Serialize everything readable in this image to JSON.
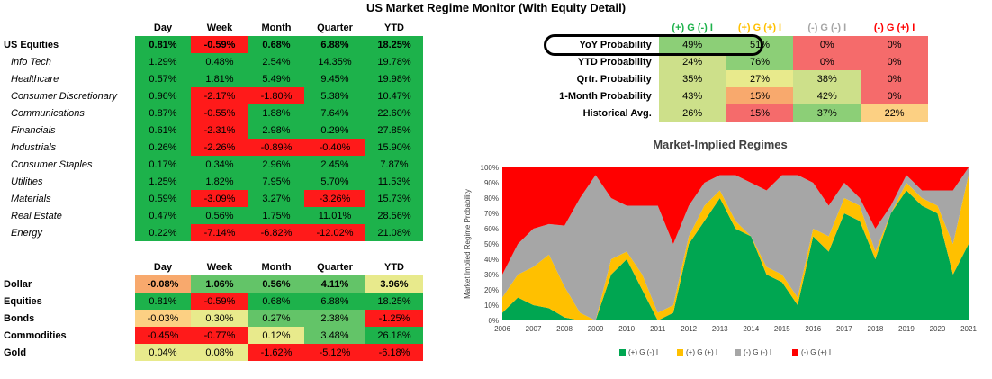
{
  "title": "US Market Regime Monitor (With Equity Detail)",
  "colors": {
    "green": "#1db24b",
    "light_green": "#63c468",
    "mid_green": "#8ccf77",
    "lime": "#cde08a",
    "yellow": "#e8ea8c",
    "orange": "#f8a96d",
    "light_orange": "#fcd083",
    "red": "#ff1a1a",
    "light_red": "#f56b6b",
    "regime_green": "#00a651",
    "regime_yellow": "#ffc000",
    "regime_gray": "#a6a6a6",
    "regime_red": "#ff0000"
  },
  "equity_table": {
    "headers": [
      "Day",
      "Week",
      "Month",
      "Quarter",
      "YTD"
    ],
    "rows": [
      {
        "label": "US Equities",
        "sub": false,
        "bold": true,
        "values": [
          "0.81%",
          "-0.59%",
          "0.68%",
          "6.88%",
          "18.25%"
        ],
        "fills": [
          "green",
          "red",
          "green",
          "green",
          "green"
        ]
      },
      {
        "label": "Info Tech",
        "sub": true,
        "values": [
          "1.29%",
          "0.48%",
          "2.54%",
          "14.35%",
          "19.78%"
        ],
        "fills": [
          "green",
          "green",
          "green",
          "green",
          "green"
        ]
      },
      {
        "label": "Healthcare",
        "sub": true,
        "values": [
          "0.57%",
          "1.81%",
          "5.49%",
          "9.45%",
          "19.98%"
        ],
        "fills": [
          "green",
          "green",
          "green",
          "green",
          "green"
        ]
      },
      {
        "label": "Consumer Discretionary",
        "sub": true,
        "values": [
          "0.96%",
          "-2.17%",
          "-1.80%",
          "5.38%",
          "10.47%"
        ],
        "fills": [
          "green",
          "red",
          "red",
          "green",
          "green"
        ]
      },
      {
        "label": "Communications",
        "sub": true,
        "values": [
          "0.87%",
          "-0.55%",
          "1.88%",
          "7.64%",
          "22.60%"
        ],
        "fills": [
          "green",
          "red",
          "green",
          "green",
          "green"
        ]
      },
      {
        "label": "Financials",
        "sub": true,
        "values": [
          "0.61%",
          "-2.31%",
          "2.98%",
          "0.29%",
          "27.85%"
        ],
        "fills": [
          "green",
          "red",
          "green",
          "green",
          "green"
        ]
      },
      {
        "label": "Industrials",
        "sub": true,
        "values": [
          "0.26%",
          "-2.26%",
          "-0.89%",
          "-0.40%",
          "15.90%"
        ],
        "fills": [
          "green",
          "red",
          "red",
          "red",
          "green"
        ]
      },
      {
        "label": "Consumer Staples",
        "sub": true,
        "values": [
          "0.17%",
          "0.34%",
          "2.96%",
          "2.45%",
          "7.87%"
        ],
        "fills": [
          "green",
          "green",
          "green",
          "green",
          "green"
        ]
      },
      {
        "label": "Utilities",
        "sub": true,
        "values": [
          "1.25%",
          "1.82%",
          "7.95%",
          "5.70%",
          "11.53%"
        ],
        "fills": [
          "green",
          "green",
          "green",
          "green",
          "green"
        ]
      },
      {
        "label": "Materials",
        "sub": true,
        "values": [
          "0.59%",
          "-3.09%",
          "3.27%",
          "-3.26%",
          "15.73%"
        ],
        "fills": [
          "green",
          "red",
          "green",
          "red",
          "green"
        ]
      },
      {
        "label": "Real Estate",
        "sub": true,
        "values": [
          "0.47%",
          "0.56%",
          "1.75%",
          "11.01%",
          "28.56%"
        ],
        "fills": [
          "green",
          "green",
          "green",
          "green",
          "green"
        ]
      },
      {
        "label": "Energy",
        "sub": true,
        "values": [
          "0.22%",
          "-7.14%",
          "-6.82%",
          "-12.02%",
          "21.08%"
        ],
        "fills": [
          "green",
          "red",
          "red",
          "red",
          "green"
        ]
      }
    ]
  },
  "asset_table": {
    "headers": [
      "Day",
      "Week",
      "Month",
      "Quarter",
      "YTD"
    ],
    "rows": [
      {
        "label": "Dollar",
        "bold": true,
        "values": [
          "-0.08%",
          "1.06%",
          "0.56%",
          "4.11%",
          "3.96%"
        ],
        "fills": [
          "orange",
          "light_green",
          "light_green",
          "light_green",
          "yellow"
        ]
      },
      {
        "label": "Equities",
        "bold": false,
        "values": [
          "0.81%",
          "-0.59%",
          "0.68%",
          "6.88%",
          "18.25%"
        ],
        "fills": [
          "green",
          "red",
          "green",
          "green",
          "green"
        ]
      },
      {
        "label": "Bonds",
        "bold": false,
        "values": [
          "-0.03%",
          "0.30%",
          "0.27%",
          "2.38%",
          "-1.25%"
        ],
        "fills": [
          "light_orange",
          "yellow",
          "light_green",
          "light_green",
          "red"
        ]
      },
      {
        "label": "Commodities",
        "bold": false,
        "values": [
          "-0.45%",
          "-0.77%",
          "0.12%",
          "3.48%",
          "26.18%"
        ],
        "fills": [
          "red",
          "red",
          "yellow",
          "light_green",
          "green"
        ]
      },
      {
        "label": "Gold",
        "bold": false,
        "values": [
          "0.04%",
          "0.08%",
          "-1.62%",
          "-5.12%",
          "-6.18%"
        ],
        "fills": [
          "yellow",
          "yellow",
          "red",
          "red",
          "red"
        ]
      }
    ]
  },
  "regime_table": {
    "headers": [
      {
        "text": "(+) G (-) I",
        "color": "#1db24b"
      },
      {
        "text": "(+) G (+) I",
        "color": "#ffc000"
      },
      {
        "text": "(-) G (-) I",
        "color": "#a6a6a6"
      },
      {
        "text": "(-) G (+) I",
        "color": "#ff0000"
      }
    ],
    "rows": [
      {
        "label": "YoY Probability",
        "values": [
          "49%",
          "51%",
          "0%",
          "0%"
        ],
        "fills": [
          "mid_green",
          "mid_green",
          "light_red",
          "light_red"
        ]
      },
      {
        "label": "YTD Probability",
        "values": [
          "24%",
          "76%",
          "0%",
          "0%"
        ],
        "fills": [
          "lime",
          "mid_green",
          "light_red",
          "light_red"
        ]
      },
      {
        "label": "Qrtr. Probability",
        "values": [
          "35%",
          "27%",
          "38%",
          "0%"
        ],
        "fills": [
          "lime",
          "yellow",
          "lime",
          "light_red"
        ]
      },
      {
        "label": "1-Month Probability",
        "values": [
          "43%",
          "15%",
          "42%",
          "0%"
        ],
        "fills": [
          "lime",
          "orange",
          "lime",
          "light_red"
        ]
      },
      {
        "label": "Historical Avg.",
        "values": [
          "26%",
          "15%",
          "37%",
          "22%"
        ],
        "fills": [
          "lime",
          "light_red",
          "mid_green",
          "light_orange"
        ]
      }
    ]
  },
  "chart_data": {
    "type": "area",
    "title": "Market-Implied Regimes",
    "ylabel": "Market Implied Regime Probability",
    "xlabel": "",
    "x_ticks": [
      "2006",
      "2007",
      "2008",
      "2009",
      "2010",
      "2011",
      "2012",
      "2013",
      "2014",
      "2015",
      "2016",
      "2017",
      "2018",
      "2019",
      "2020",
      "2021"
    ],
    "y_ticks": [
      "0%",
      "10%",
      "20%",
      "30%",
      "40%",
      "50%",
      "60%",
      "70%",
      "80%",
      "90%",
      "100%"
    ],
    "xlim": [
      2006,
      2021
    ],
    "ylim": [
      0,
      100
    ],
    "stacked": true,
    "x": [
      2006.0,
      2006.5,
      2007.0,
      2007.5,
      2008.0,
      2008.5,
      2009.0,
      2009.5,
      2010.0,
      2010.5,
      2011.0,
      2011.5,
      2012.0,
      2012.5,
      2013.0,
      2013.5,
      2014.0,
      2014.5,
      2015.0,
      2015.5,
      2016.0,
      2016.5,
      2017.0,
      2017.5,
      2018.0,
      2018.5,
      2019.0,
      2019.5,
      2020.0,
      2020.5,
      2021.0
    ],
    "series": [
      {
        "name": "(+) G (-) I",
        "color": "#00a651",
        "values": [
          5,
          15,
          10,
          8,
          2,
          0,
          0,
          30,
          40,
          20,
          0,
          5,
          50,
          65,
          80,
          60,
          55,
          30,
          25,
          10,
          55,
          45,
          70,
          65,
          40,
          70,
          85,
          75,
          70,
          30,
          50
        ]
      },
      {
        "name": "(+) G (+) I",
        "color": "#ffc000",
        "values": [
          10,
          15,
          25,
          35,
          20,
          5,
          0,
          10,
          5,
          10,
          5,
          5,
          5,
          10,
          5,
          5,
          0,
          5,
          5,
          5,
          5,
          10,
          10,
          10,
          5,
          0,
          5,
          5,
          5,
          20,
          45
        ]
      },
      {
        "name": "(-) G (-) I",
        "color": "#a6a6a6",
        "values": [
          15,
          20,
          25,
          20,
          40,
          75,
          95,
          40,
          30,
          45,
          70,
          40,
          20,
          15,
          10,
          30,
          35,
          50,
          65,
          80,
          30,
          20,
          10,
          5,
          15,
          5,
          5,
          5,
          10,
          35,
          5
        ]
      },
      {
        "name": "(-) G (+) I",
        "color": "#ff0000",
        "values": [
          70,
          50,
          40,
          37,
          38,
          20,
          5,
          20,
          25,
          25,
          25,
          50,
          25,
          10,
          5,
          5,
          10,
          15,
          5,
          5,
          10,
          25,
          10,
          20,
          40,
          25,
          5,
          15,
          15,
          15,
          0
        ]
      }
    ],
    "legend_position": "bottom"
  }
}
